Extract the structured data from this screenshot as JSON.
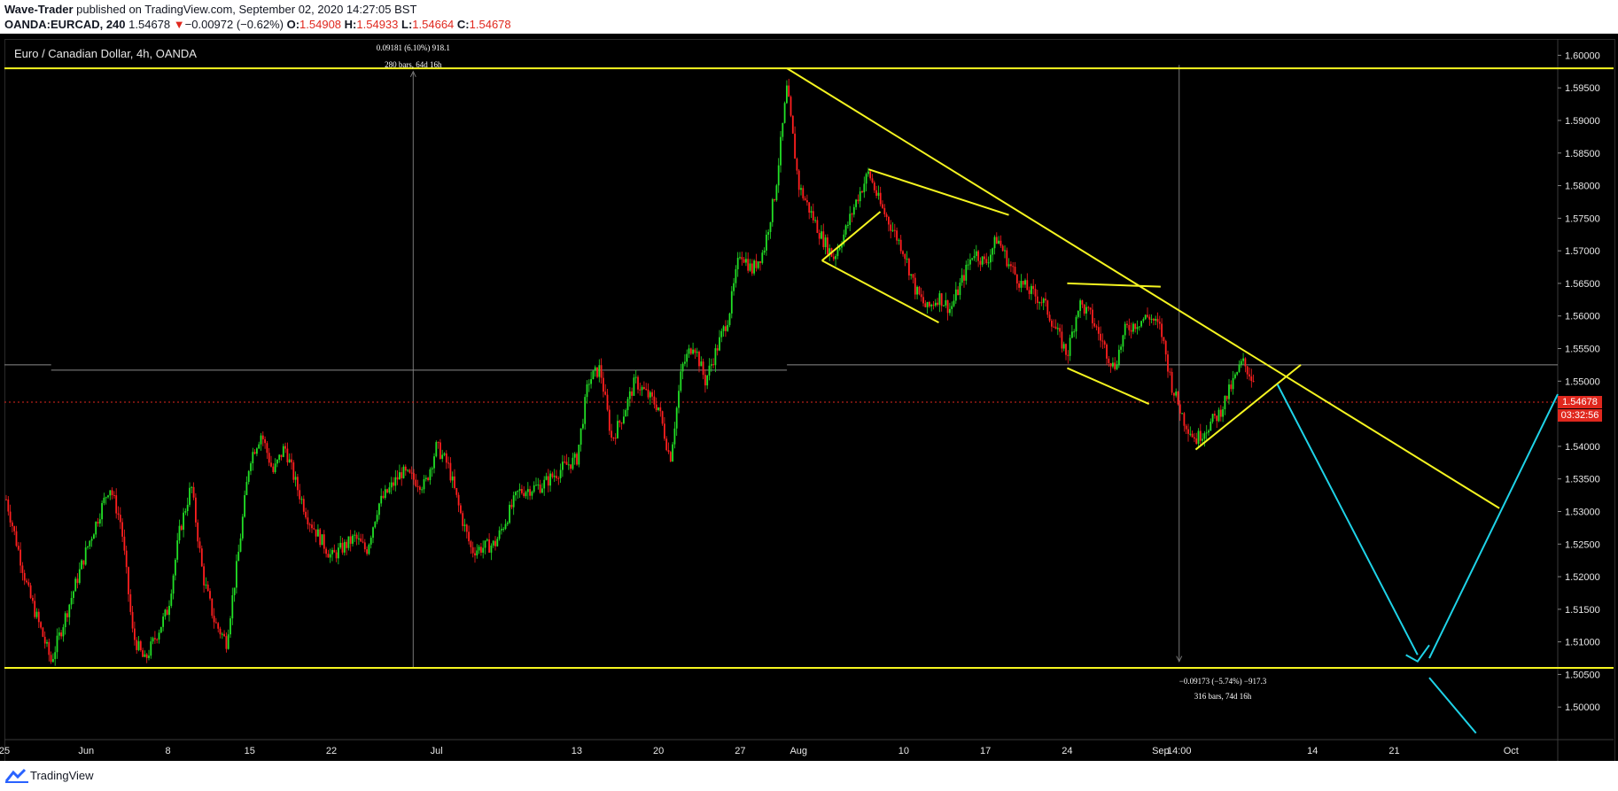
{
  "header": {
    "publisher": "Wave-Trader",
    "published_text": " published on TradingView.com, September 02, 2020 14:27:05 BST",
    "symbol": "OANDA:EURCAD, 240",
    "last": "1.54678",
    "change": "−0.00972 (−0.62%)",
    "o_label": "O:",
    "o_value": "1.54908",
    "h_label": "H:",
    "h_value": "1.54933",
    "l_label": "L:",
    "l_value": "1.54664",
    "c_label": "C:",
    "c_value": "1.54678"
  },
  "chart_title": "Euro / Canadian Dollar, 4h, OANDA",
  "footer": {
    "brand": "TradingView"
  },
  "price_tag": {
    "price": "1.54678",
    "countdown": "03:32:56"
  },
  "colors": {
    "up": "#22e026",
    "down": "#ff1f1f",
    "trend": "#f5f520",
    "projection": "#1fd3e8",
    "price": "#e0281e",
    "background": "#000000"
  },
  "chart_data": {
    "type": "candlestick",
    "title": "Euro / Canadian Dollar, 4h, OANDA",
    "ylim": [
      1.495,
      1.6025
    ],
    "y_ticks": [
      "1.60000",
      "1.59500",
      "1.59000",
      "1.58500",
      "1.58000",
      "1.57500",
      "1.57000",
      "1.56500",
      "1.56000",
      "1.55500",
      "1.55000",
      "1.54000",
      "1.53500",
      "1.53000",
      "1.52500",
      "1.52000",
      "1.51500",
      "1.51000",
      "1.50500",
      "1.50000"
    ],
    "x_range": [
      "2020-05-25",
      "2020-10-05"
    ],
    "x_ticks": [
      {
        "label": "25",
        "date": "2020-05-25"
      },
      {
        "label": "Jun",
        "date": "2020-06-01"
      },
      {
        "label": "8",
        "date": "2020-06-08"
      },
      {
        "label": "15",
        "date": "2020-06-15"
      },
      {
        "label": "22",
        "date": "2020-06-22"
      },
      {
        "label": "Jul",
        "date": "2020-07-01"
      },
      {
        "label": "13",
        "date": "2020-07-13"
      },
      {
        "label": "20",
        "date": "2020-07-20"
      },
      {
        "label": "27",
        "date": "2020-07-27"
      },
      {
        "label": "Aug",
        "date": "2020-08-01"
      },
      {
        "label": "10",
        "date": "2020-08-10"
      },
      {
        "label": "17",
        "date": "2020-08-17"
      },
      {
        "label": "24",
        "date": "2020-08-24"
      },
      {
        "label": "Sep",
        "date": "2020-09-01"
      },
      {
        "label": "14:00",
        "date": "2020-09-02T14:00"
      },
      {
        "label": "14",
        "date": "2020-09-14"
      },
      {
        "label": "21",
        "date": "2020-09-21"
      },
      {
        "label": "Oct",
        "date": "2020-10-01"
      }
    ],
    "price_path": [
      [
        "2020-05-25",
        1.533
      ],
      [
        "2020-05-27",
        1.518
      ],
      [
        "2020-05-29",
        1.507
      ],
      [
        "2020-06-01",
        1.524
      ],
      [
        "2020-06-03",
        1.534
      ],
      [
        "2020-06-04",
        1.528
      ],
      [
        "2020-06-05",
        1.511
      ],
      [
        "2020-06-06",
        1.507
      ],
      [
        "2020-06-08",
        1.515
      ],
      [
        "2020-06-09",
        1.527
      ],
      [
        "2020-06-10",
        1.534
      ],
      [
        "2020-06-11",
        1.52
      ],
      [
        "2020-06-12",
        1.513
      ],
      [
        "2020-06-13",
        1.51
      ],
      [
        "2020-06-14",
        1.523
      ],
      [
        "2020-06-15",
        1.538
      ],
      [
        "2020-06-16",
        1.542
      ],
      [
        "2020-06-17",
        1.536
      ],
      [
        "2020-06-18",
        1.54
      ],
      [
        "2020-06-19",
        1.534
      ],
      [
        "2020-06-20",
        1.529
      ],
      [
        "2020-06-22",
        1.523
      ],
      [
        "2020-06-24",
        1.526
      ],
      [
        "2020-06-25",
        1.524
      ],
      [
        "2020-06-26",
        1.531
      ],
      [
        "2020-06-28",
        1.536
      ],
      [
        "2020-06-30",
        1.534
      ],
      [
        "2020-07-01",
        1.54
      ],
      [
        "2020-07-02",
        1.537
      ],
      [
        "2020-07-03",
        1.53
      ],
      [
        "2020-07-04",
        1.524
      ],
      [
        "2020-07-06",
        1.525
      ],
      [
        "2020-07-08",
        1.533
      ],
      [
        "2020-07-10",
        1.534
      ],
      [
        "2020-07-12",
        1.537
      ],
      [
        "2020-07-13",
        1.538
      ],
      [
        "2020-07-14",
        1.55
      ],
      [
        "2020-07-15",
        1.552
      ],
      [
        "2020-07-16",
        1.541
      ],
      [
        "2020-07-17",
        1.545
      ],
      [
        "2020-07-18",
        1.55
      ],
      [
        "2020-07-20",
        1.546
      ],
      [
        "2020-07-21",
        1.538
      ],
      [
        "2020-07-22",
        1.552
      ],
      [
        "2020-07-23",
        1.556
      ],
      [
        "2020-07-24",
        1.55
      ],
      [
        "2020-07-25",
        1.555
      ],
      [
        "2020-07-26",
        1.56
      ],
      [
        "2020-07-27",
        1.57
      ],
      [
        "2020-07-28",
        1.567
      ],
      [
        "2020-07-29",
        1.57
      ],
      [
        "2020-07-30",
        1.579
      ],
      [
        "2020-07-31",
        1.595
      ],
      [
        "2020-08-01",
        1.58
      ],
      [
        "2020-08-03",
        1.572
      ],
      [
        "2020-08-04",
        1.569
      ],
      [
        "2020-08-05",
        1.573
      ],
      [
        "2020-08-06",
        1.578
      ],
      [
        "2020-08-07",
        1.582
      ],
      [
        "2020-08-08",
        1.577
      ],
      [
        "2020-08-10",
        1.57
      ],
      [
        "2020-08-11",
        1.564
      ],
      [
        "2020-08-12",
        1.561
      ],
      [
        "2020-08-13",
        1.563
      ],
      [
        "2020-08-14",
        1.561
      ],
      [
        "2020-08-16",
        1.57
      ],
      [
        "2020-08-17",
        1.568
      ],
      [
        "2020-08-18",
        1.572
      ],
      [
        "2020-08-19",
        1.568
      ],
      [
        "2020-08-20",
        1.565
      ],
      [
        "2020-08-22",
        1.562
      ],
      [
        "2020-08-24",
        1.554
      ],
      [
        "2020-08-25",
        1.562
      ],
      [
        "2020-08-26",
        1.56
      ],
      [
        "2020-08-27",
        1.556
      ],
      [
        "2020-08-28",
        1.552
      ],
      [
        "2020-08-29",
        1.558
      ],
      [
        "2020-08-31",
        1.56
      ],
      [
        "2020-09-01",
        1.558
      ],
      [
        "2020-09-02",
        1.549
      ],
      [
        "2020-09-03",
        1.544
      ],
      [
        "2020-09-04",
        1.541
      ],
      [
        "2020-09-06",
        1.545
      ],
      [
        "2020-09-08",
        1.553
      ],
      [
        "2020-09-09",
        1.55
      ]
    ],
    "horizontal_levels": [
      1.598,
      1.506,
      1.5525
    ],
    "current_price": 1.54678,
    "annotations": [
      {
        "text": "0.09181 (6.10%) 918.1"
      },
      {
        "text": "280 bars, 64d 16h"
      },
      {
        "text": "−0.09173 (−5.74%) −917.3"
      },
      {
        "text": "316 bars, 74d 16h"
      }
    ]
  }
}
